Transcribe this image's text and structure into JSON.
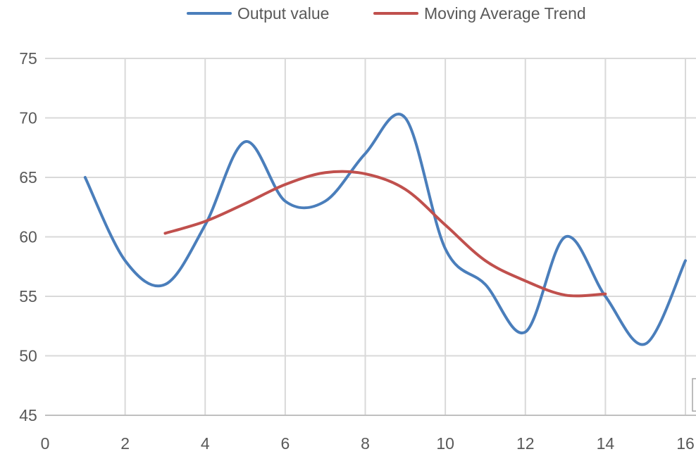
{
  "chart_data": {
    "type": "line",
    "smooth": true,
    "title": "",
    "xlabel": "",
    "ylabel": "",
    "xlim": [
      0,
      16
    ],
    "ylim": [
      45,
      75
    ],
    "x_ticks": [
      0,
      2,
      4,
      6,
      8,
      10,
      12,
      14,
      16
    ],
    "y_ticks": [
      45,
      50,
      55,
      60,
      65,
      70,
      75
    ],
    "grid": {
      "vertical": true,
      "horizontal": true
    },
    "legend_position": "top",
    "series": [
      {
        "name": "Output value",
        "color": "#4a7ebb",
        "x": [
          1,
          2,
          3,
          4,
          5,
          6,
          7,
          8,
          9,
          10,
          11,
          12,
          13,
          14,
          15,
          16
        ],
        "y": [
          65,
          58,
          56,
          61,
          68,
          63,
          63,
          67,
          70,
          59,
          56,
          52,
          60,
          55,
          51,
          58
        ]
      },
      {
        "name": "Moving Average Trend",
        "color": "#c0504d",
        "x": [
          3,
          4,
          5,
          6,
          7,
          8,
          9,
          10,
          11,
          12,
          13,
          14
        ],
        "y": [
          60.3,
          61.3,
          62.8,
          64.4,
          65.4,
          65.3,
          64,
          61,
          58,
          56.3,
          55.1,
          55.2
        ]
      }
    ]
  }
}
